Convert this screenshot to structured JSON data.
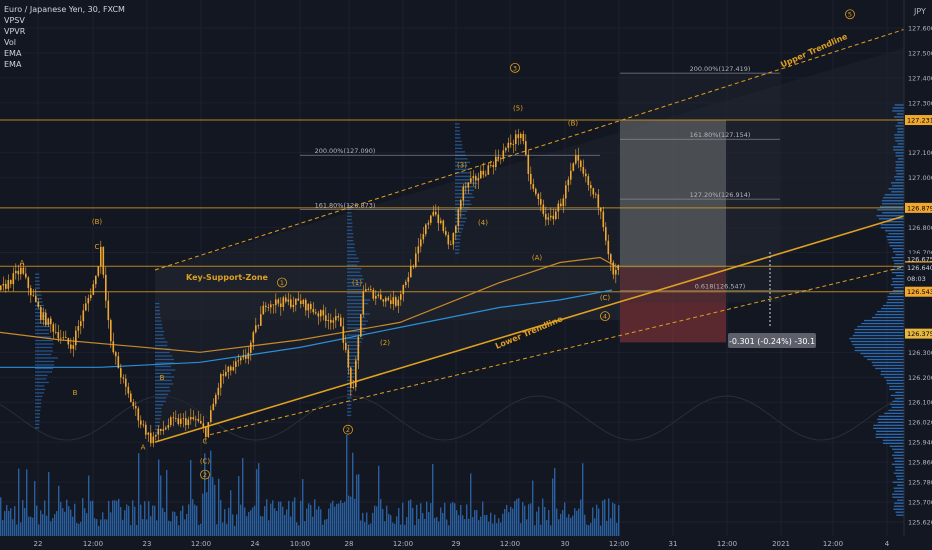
{
  "window": {
    "symbol_title": "Euro / Japanese Yen, 30, FXCM",
    "currency": "JPY",
    "indicators": [
      "VPSV",
      "VPVR",
      "Vol",
      "EMA",
      "EMA"
    ]
  },
  "colors": {
    "background": "#131722",
    "candle": "#f0a830",
    "volume": "#2e6cb5",
    "trendline": "#e0a020",
    "ema_slow": "#2a8fd6",
    "ema_fast": "#c88a2a",
    "profile": "#2f78c8",
    "tag_text": "#000000"
  },
  "chart_data": {
    "type": "candlestick",
    "title": "Euro / Japanese Yen, 30, FXCM",
    "ylabel": "JPY",
    "ylim": [
      125.58,
      127.68
    ],
    "x_ticks": [
      "22",
      "12:00",
      "23",
      "12:00",
      "24",
      "10:00",
      "28",
      "12:00",
      "29",
      "12:00",
      "30",
      "12:00",
      "31",
      "12:00",
      "2021",
      "12:00",
      "4"
    ],
    "y_ticks": [
      "127.600",
      "127.500",
      "127.400",
      "127.300",
      "127.100",
      "127.000",
      "126.800",
      "126.700",
      "126.300",
      "126.200",
      "126.100",
      "126.020",
      "125.940",
      "125.860",
      "125.780",
      "125.700",
      "125.620"
    ],
    "price_tags": [
      {
        "label": "127.231",
        "value": 127.231
      },
      {
        "label": "126.879",
        "value": 126.879
      },
      {
        "label": "126.675",
        "value": 126.675
      },
      {
        "label": "126.645",
        "value": 126.645
      },
      {
        "label": "126.640",
        "value": 126.64
      },
      {
        "label": "08:03",
        "value": 126.595
      },
      {
        "label": "126.543",
        "value": 126.543
      },
      {
        "label": "126.375",
        "value": 126.375
      }
    ],
    "price_path": [
      [
        0,
        126.55
      ],
      [
        20,
        126.63
      ],
      [
        40,
        126.45
      ],
      [
        70,
        126.32
      ],
      [
        95,
        126.6
      ],
      [
        100,
        126.72
      ],
      [
        110,
        126.33
      ],
      [
        125,
        126.15
      ],
      [
        140,
        126.02
      ],
      [
        150,
        125.95
      ],
      [
        170,
        126.02
      ],
      [
        195,
        126.03
      ],
      [
        205,
        125.98
      ],
      [
        220,
        126.2
      ],
      [
        245,
        126.28
      ],
      [
        265,
        126.5
      ],
      [
        300,
        126.5
      ],
      [
        320,
        126.45
      ],
      [
        340,
        126.42
      ],
      [
        352,
        126.12
      ],
      [
        362,
        126.55
      ],
      [
        395,
        126.5
      ],
      [
        415,
        126.68
      ],
      [
        432,
        126.88
      ],
      [
        450,
        126.72
      ],
      [
        462,
        126.95
      ],
      [
        490,
        127.05
      ],
      [
        520,
        127.18
      ],
      [
        530,
        126.97
      ],
      [
        548,
        126.82
      ],
      [
        560,
        126.9
      ],
      [
        575,
        127.07
      ],
      [
        590,
        126.95
      ],
      [
        600,
        126.88
      ],
      [
        612,
        126.6
      ],
      [
        618,
        126.64
      ]
    ],
    "ema_slow": [
      [
        0,
        126.24
      ],
      [
        100,
        126.24
      ],
      [
        200,
        126.26
      ],
      [
        300,
        126.32
      ],
      [
        400,
        126.4
      ],
      [
        500,
        126.48
      ],
      [
        560,
        126.51
      ],
      [
        612,
        126.55
      ]
    ],
    "ema_fast": [
      [
        0,
        126.38
      ],
      [
        60,
        126.35
      ],
      [
        200,
        126.3
      ],
      [
        300,
        126.35
      ],
      [
        400,
        126.42
      ],
      [
        500,
        126.58
      ],
      [
        560,
        126.66
      ],
      [
        600,
        126.68
      ],
      [
        618,
        126.64
      ]
    ],
    "horizontal_levels": [
      127.231,
      126.879,
      126.645,
      126.543
    ],
    "trendlines": [
      {
        "name": "Upper Trendline",
        "style": "dashed",
        "from": [
          155,
          126.63
        ],
        "to": [
          932,
          127.63
        ]
      },
      {
        "name": "Lower Trendline",
        "style": "solid",
        "from": [
          155,
          125.94
        ],
        "to": [
          932,
          126.88
        ]
      },
      {
        "name": "",
        "style": "dashed",
        "from": [
          210,
          125.97
        ],
        "to": [
          932,
          126.67
        ]
      }
    ],
    "zones": [
      {
        "label": "Key-Support-Zone",
        "x": [
          155,
          620
        ],
        "y": [
          126.43,
          126.64
        ]
      }
    ],
    "fib_levels": [
      {
        "label": "200.00%(127.090)",
        "value": 127.09,
        "x": [
          300,
          600
        ]
      },
      {
        "label": "161.80%(126.873)",
        "value": 126.873,
        "x": [
          300,
          600
        ]
      },
      {
        "label": "200.00%(127.419)",
        "value": 127.419,
        "x": [
          620,
          780
        ]
      },
      {
        "label": "161.80%(127.154)",
        "value": 127.154,
        "x": [
          620,
          780
        ]
      },
      {
        "label": "127.20%(126.914)",
        "value": 126.914,
        "x": [
          620,
          780
        ]
      },
      {
        "label": "0.618(126.547)",
        "value": 126.547,
        "x": [
          620,
          810
        ]
      }
    ],
    "projection_boxes": [
      {
        "x": [
          620,
          726
        ],
        "y": [
          126.64,
          127.231
        ],
        "color": "#888888"
      },
      {
        "x": [
          620,
          726
        ],
        "y": [
          126.34,
          126.64
        ],
        "color": "#b04040"
      }
    ],
    "measure_label": "-0.301 (-0.24%) -30.1",
    "wave_labels": [
      {
        "label": "A",
        "x": 22,
        "value": 126.66,
        "circled": false
      },
      {
        "label": "(B)",
        "x": 97,
        "value": 126.825,
        "circled": false
      },
      {
        "label": "C",
        "x": 97,
        "value": 126.725,
        "circled": false
      },
      {
        "label": "B",
        "x": 75,
        "value": 126.14,
        "circled": false
      },
      {
        "label": "B",
        "x": 162,
        "value": 126.2,
        "circled": false
      },
      {
        "label": "A",
        "x": 143,
        "value": 125.92,
        "circled": false
      },
      {
        "label": "C",
        "x": 205,
        "value": 125.945,
        "circled": false
      },
      {
        "label": "(C)",
        "x": 205,
        "value": 125.865,
        "circled": false
      },
      {
        "label": "2",
        "x": 205,
        "value": 125.81,
        "circled": true
      },
      {
        "label": "1",
        "x": 282,
        "value": 126.58,
        "circled": true
      },
      {
        "label": "(1)",
        "x": 357,
        "value": 126.58,
        "circled": false
      },
      {
        "label": "(2)",
        "x": 385,
        "value": 126.34,
        "circled": false
      },
      {
        "label": "2",
        "x": 348,
        "value": 125.99,
        "circled": true
      },
      {
        "label": "3",
        "x": 515,
        "value": 127.44,
        "circled": true
      },
      {
        "label": "(3)",
        "x": 462,
        "value": 127.05,
        "circled": false
      },
      {
        "label": "(4)",
        "x": 483,
        "value": 126.82,
        "circled": false
      },
      {
        "label": "(5)",
        "x": 518,
        "value": 127.28,
        "circled": false
      },
      {
        "label": "(B)",
        "x": 573,
        "value": 127.22,
        "circled": false
      },
      {
        "label": "(A)",
        "x": 537,
        "value": 126.68,
        "circled": false
      },
      {
        "label": "(C)",
        "x": 605,
        "value": 126.52,
        "circled": false
      },
      {
        "label": "4",
        "x": 605,
        "value": 126.445,
        "circled": true
      },
      {
        "label": "5",
        "x": 850,
        "value": 127.655,
        "circled": true
      }
    ],
    "annotations": [
      {
        "text": "Key-Support-Zone",
        "x": 227,
        "value": 126.59,
        "rotate": 0
      },
      {
        "text": "Upper Trendline",
        "x": 815,
        "value": 127.5,
        "rotate": -24
      },
      {
        "text": "Lower Trendline",
        "x": 530,
        "value": 126.37,
        "rotate": -23
      }
    ]
  }
}
